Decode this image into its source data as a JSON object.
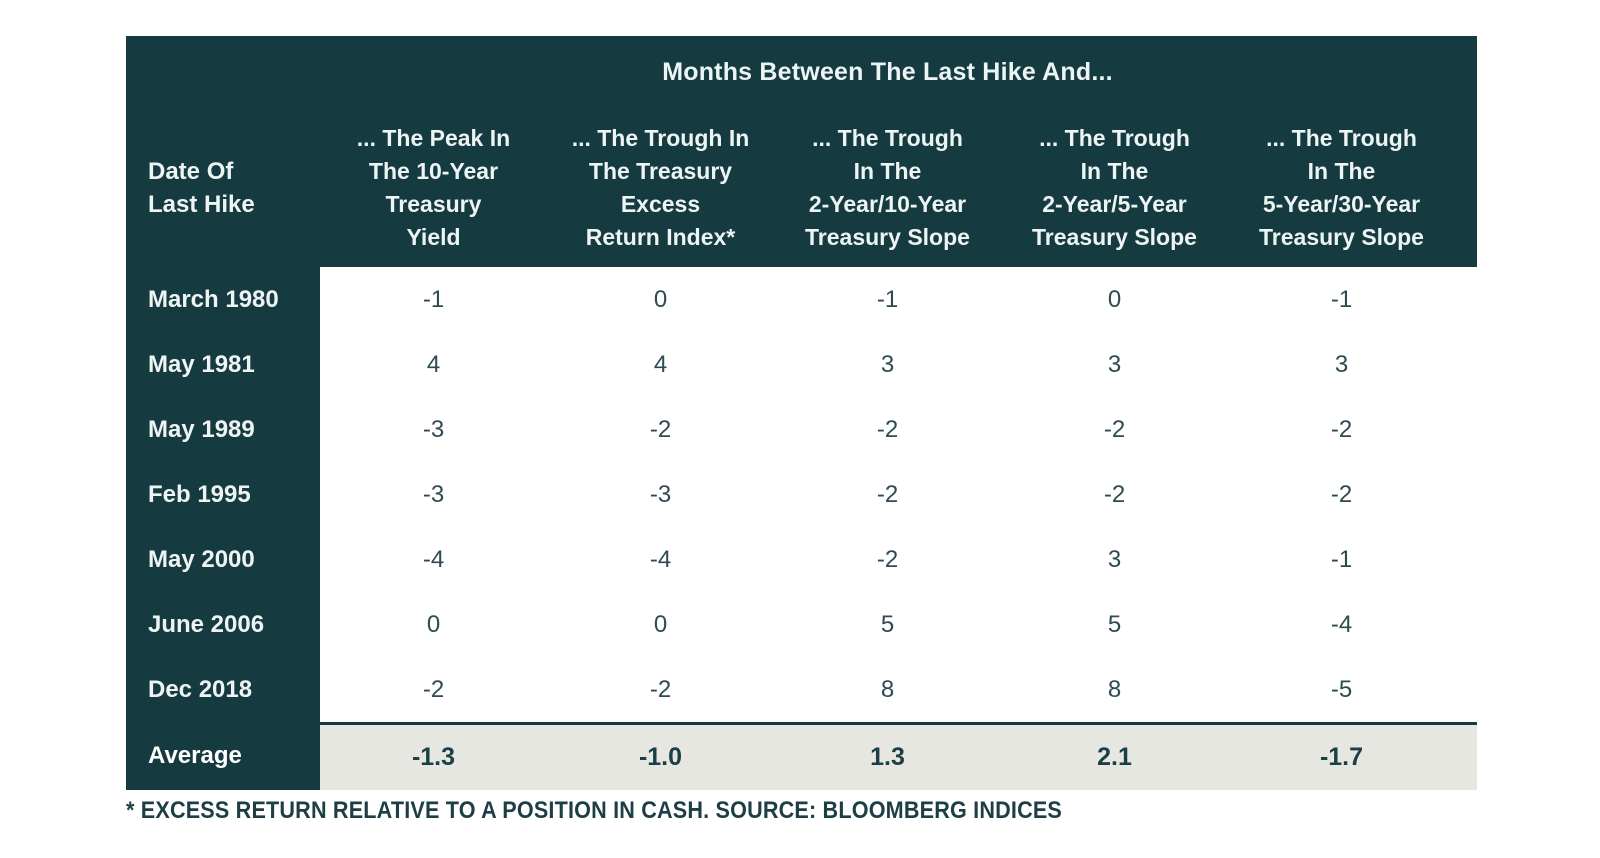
{
  "table": {
    "title": "Months Between The Last Hike And...",
    "row_header": "Date Of\nLast Hike",
    "columns": [
      "... The Peak In\nThe 10-Year\nTreasury\nYield",
      "... The Trough In\nThe Treasury\nExcess\nReturn Index*",
      "... The Trough\nIn The\n2-Year/10-Year\nTreasury Slope",
      "... The Trough\nIn The\n2-Year/5-Year\nTreasury Slope",
      "... The Trough\nIn The\n5-Year/30-Year\nTreasury Slope"
    ],
    "rows": [
      {
        "date": "March 1980",
        "values": [
          "-1",
          "0",
          "-1",
          "0",
          "-1"
        ]
      },
      {
        "date": "May 1981",
        "values": [
          "4",
          "4",
          "3",
          "3",
          "3"
        ]
      },
      {
        "date": "May 1989",
        "values": [
          "-3",
          "-2",
          "-2",
          "-2",
          "-2"
        ]
      },
      {
        "date": "Feb 1995",
        "values": [
          "-3",
          "-3",
          "-2",
          "-2",
          "-2"
        ]
      },
      {
        "date": "May 2000",
        "values": [
          "-4",
          "-4",
          "-2",
          "3",
          "-1"
        ]
      },
      {
        "date": "June 2006",
        "values": [
          "0",
          "0",
          "5",
          "5",
          "-4"
        ]
      },
      {
        "date": "Dec 2018",
        "values": [
          "-2",
          "-2",
          "8",
          "8",
          "-5"
        ]
      }
    ],
    "average": {
      "label": "Average",
      "values": [
        "-1.3",
        "-1.0",
        "1.3",
        "2.1",
        "-1.7"
      ]
    }
  },
  "footnote": "* EXCESS RETURN RELATIVE TO A POSITION IN CASH. SOURCE: BLOOMBERG INDICES",
  "colors": {
    "header_teal": "#153b41",
    "header_text": "#edf4f4",
    "body_text": "#2d4b51",
    "average_bg": "#e7e7e2",
    "average_text": "#1a3f45",
    "data_bg": "#ffffff"
  },
  "chart_data": {
    "type": "table",
    "title": "Months Between The Last Hike And...",
    "row_label_header": "Date Of Last Hike",
    "columns": [
      "... The Peak In The 10-Year Treasury Yield",
      "... The Trough In The Treasury Excess Return Index*",
      "... The Trough In The 2-Year/10-Year Treasury Slope",
      "... The Trough In The 2-Year/5-Year Treasury Slope",
      "... The Trough In The 5-Year/30-Year Treasury Slope"
    ],
    "rows": [
      {
        "label": "March 1980",
        "values": [
          -1,
          0,
          -1,
          0,
          -1
        ]
      },
      {
        "label": "May 1981",
        "values": [
          4,
          4,
          3,
          3,
          3
        ]
      },
      {
        "label": "May 1989",
        "values": [
          -3,
          -2,
          -2,
          -2,
          -2
        ]
      },
      {
        "label": "Feb 1995",
        "values": [
          -3,
          -3,
          -2,
          -2,
          -2
        ]
      },
      {
        "label": "May 2000",
        "values": [
          -4,
          -4,
          -2,
          3,
          -1
        ]
      },
      {
        "label": "June 2006",
        "values": [
          0,
          0,
          5,
          5,
          -4
        ]
      },
      {
        "label": "Dec 2018",
        "values": [
          -2,
          -2,
          8,
          8,
          -5
        ]
      }
    ],
    "average_row": {
      "label": "Average",
      "values": [
        -1.3,
        -1.0,
        1.3,
        2.1,
        -1.7
      ]
    },
    "footnote": "* EXCESS RETURN RELATIVE TO A POSITION IN CASH. SOURCE: BLOOMBERG INDICES"
  }
}
